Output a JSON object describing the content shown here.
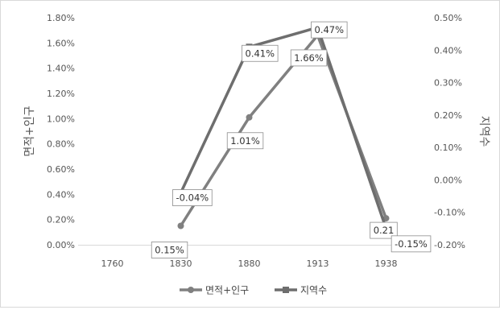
{
  "chart_data": {
    "type": "line",
    "categories": [
      "1760",
      "1830",
      "1880",
      "1913",
      "1938"
    ],
    "title": "",
    "y_left": {
      "label": "면적+인구",
      "min": 0.0,
      "max": 0.018,
      "step": 0.002,
      "ticks": [
        "0.00%",
        "0.20%",
        "0.40%",
        "0.60%",
        "0.80%",
        "1.00%",
        "1.20%",
        "1.40%",
        "1.60%",
        "1.80%"
      ]
    },
    "y_right": {
      "label": "지역수",
      "min": -0.002,
      "max": 0.005,
      "step": 0.001,
      "ticks": [
        "-0.20%",
        "-0.10%",
        "0.00%",
        "0.10%",
        "0.20%",
        "0.30%",
        "0.40%",
        "0.50%"
      ]
    },
    "series": [
      {
        "name": "면적+인구",
        "axis": "left",
        "marker": "circle",
        "color": "#808080",
        "values": [
          null,
          0.0015,
          0.0101,
          0.0166,
          0.0021
        ],
        "labels": [
          "",
          "0.15%",
          "1.01%",
          "1.66%",
          "0.21"
        ]
      },
      {
        "name": "지역수",
        "axis": "right",
        "marker": "square",
        "color": "#6e6e6e",
        "values": [
          null,
          -0.0004,
          0.0041,
          0.0047,
          -0.0015
        ],
        "labels": [
          "",
          "-0.04%",
          "0.41%",
          "0.47%",
          "-0.15%"
        ]
      }
    ],
    "legend": {
      "position": "bottom",
      "items": [
        "면적+인구",
        "지역수"
      ]
    },
    "grid": false
  }
}
